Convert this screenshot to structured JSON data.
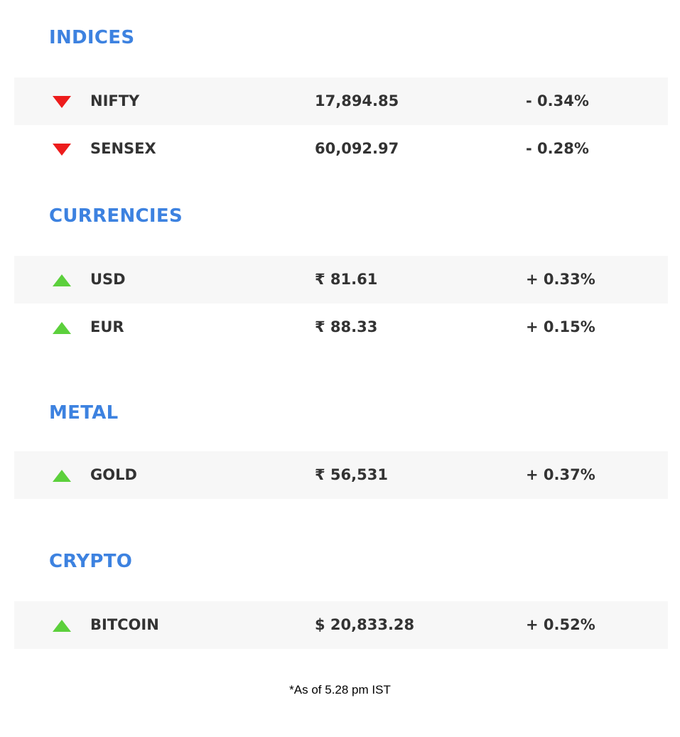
{
  "sections": [
    {
      "title": "INDICES",
      "rows": [
        {
          "direction": "down",
          "icon": "down-triangle-icon",
          "name": "NIFTY",
          "value": "17,894.85",
          "change": "- 0.34%"
        },
        {
          "direction": "down",
          "icon": "down-triangle-icon",
          "name": "SENSEX",
          "value": "60,092.97",
          "change": "- 0.28%"
        }
      ]
    },
    {
      "title": "CURRENCIES",
      "rows": [
        {
          "direction": "up",
          "icon": "up-triangle-icon",
          "name": "USD",
          "value": "₹ 81.61",
          "change": "+ 0.33%"
        },
        {
          "direction": "up",
          "icon": "up-triangle-icon",
          "name": "EUR",
          "value": "₹ 88.33",
          "change": "+ 0.15%"
        }
      ]
    },
    {
      "title": "METAL",
      "rows": [
        {
          "direction": "up",
          "icon": "up-triangle-icon",
          "name": "GOLD",
          "value": "₹ 56,531",
          "change": "+ 0.37%"
        }
      ]
    },
    {
      "title": "CRYPTO",
      "rows": [
        {
          "direction": "up",
          "icon": "up-triangle-icon",
          "name": "BITCOIN",
          "value": "$ 20,833.28",
          "change": "+ 0.52%"
        }
      ]
    }
  ],
  "footnote": "*As of 5.28 pm IST",
  "colors": {
    "heading": "#3d82e0",
    "down": "#ed1c1c",
    "up": "#5cd03c",
    "row_shade": "#f7f7f7",
    "text": "#333333"
  }
}
